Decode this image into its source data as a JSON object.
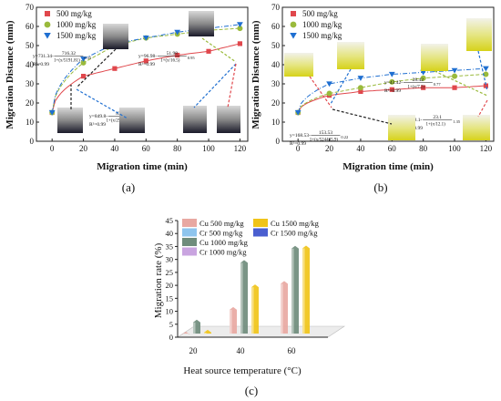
{
  "chart_data": [
    {
      "type": "scatter",
      "panel_label": "(a)",
      "xlabel": "Migration time (min)",
      "ylabel": "Migration Distance (mm)",
      "xlim": [
        -10,
        125
      ],
      "ylim": [
        0,
        70
      ],
      "x_ticks": [
        0,
        20,
        40,
        60,
        80,
        100,
        120
      ],
      "y_ticks": [
        0,
        10,
        20,
        30,
        40,
        50,
        60,
        70
      ],
      "grid": false,
      "legend": "top-left",
      "series": [
        {
          "name": "500 mg/kg",
          "color": "#e0474c",
          "marker": "square",
          "x": [
            0,
            20,
            40,
            60,
            80,
            100,
            120
          ],
          "y": [
            15,
            34,
            38,
            42,
            45,
            47,
            51
          ]
        },
        {
          "name": "1000 mg/kg",
          "color": "#9aba3c",
          "marker": "circle",
          "x": [
            0,
            20,
            40,
            60,
            80,
            100,
            120
          ],
          "y": [
            15,
            41,
            50,
            54,
            56,
            58,
            59
          ]
        },
        {
          "name": "1500 mg/kg",
          "color": "#1f6fd1",
          "marker": "triangle-down",
          "x": [
            0,
            20,
            40,
            60,
            80,
            100,
            120
          ],
          "y": [
            15,
            43,
            51,
            54,
            57,
            59,
            61
          ]
        }
      ],
      "equations": [
        {
          "main": "y=731.34-",
          "num": "716.32",
          "den": "1+(x/5191.81)",
          "exp": "0.35",
          "r2": "R²=0.99"
        },
        {
          "main": "y=96.98-",
          "num": "51.98",
          "den": "1+(x/16.5)",
          "exp": "0.95",
          "r2": "R²=0.99"
        },
        {
          "main": "y=849.8-",
          "num": "834.76",
          "den": "1+(x/25170553)",
          "exp": "0.3",
          "r2": "R²=0.99"
        }
      ]
    },
    {
      "type": "scatter",
      "panel_label": "(b)",
      "xlabel": "Migration time (min)",
      "ylabel": "Migration Distance (mm)",
      "xlim": [
        -10,
        125
      ],
      "ylim": [
        0,
        70
      ],
      "x_ticks": [
        0,
        20,
        40,
        60,
        80,
        100,
        120
      ],
      "y_ticks": [
        0,
        10,
        20,
        30,
        40,
        50,
        60,
        70
      ],
      "grid": false,
      "legend": "top-left",
      "series": [
        {
          "name": "500 mg/kg",
          "color": "#e0474c",
          "marker": "square",
          "x": [
            0,
            20,
            40,
            60,
            80,
            100,
            120
          ],
          "y": [
            15,
            24,
            26,
            27,
            28,
            28,
            29
          ]
        },
        {
          "name": "1000 mg/kg",
          "color": "#9aba3c",
          "marker": "circle",
          "x": [
            0,
            20,
            40,
            60,
            80,
            100,
            120
          ],
          "y": [
            15,
            25,
            28,
            31,
            33,
            34,
            35
          ]
        },
        {
          "name": "1500 mg/kg",
          "color": "#1f6fd1",
          "marker": "triangle-down",
          "x": [
            0,
            20,
            40,
            60,
            80,
            100,
            120
          ],
          "y": [
            15,
            30,
            33,
            35,
            36,
            37,
            38
          ]
        }
      ],
      "equations": [
        {
          "main": "y=43.42-",
          "num": "28.42",
          "den": "1+(x/7.2)",
          "exp": "0.77",
          "r2": "R²=0.99"
        },
        {
          "main": "y=168.53-",
          "num": "153.53",
          "den": "1+(x/524435.9)",
          "exp": "0.22",
          "r2": "R²=0.99"
        },
        {
          "main": "y=38.1-",
          "num": "23.1",
          "den": "1+(x/12.1)",
          "exp": "1.35",
          "r2": "R²=0.99"
        }
      ]
    },
    {
      "type": "bar",
      "panel_label": "(c)",
      "xlabel": "Heat source temperature (°C)",
      "ylabel": "Migration rate (%)",
      "categories": [
        "20",
        "40",
        "60"
      ],
      "ylim": [
        0,
        45
      ],
      "y_ticks": [
        0,
        5,
        10,
        15,
        20,
        25,
        30,
        35,
        40,
        45
      ],
      "grid": false,
      "legend": "top-left",
      "series": [
        {
          "name": "Cu 500 mg/kg",
          "color": "#e8a8a2",
          "values": [
            2.5,
            12,
            22
          ]
        },
        {
          "name": "Cr 500 mg/kg",
          "color": "#8ec5ee",
          "values": [
            0,
            0,
            0
          ]
        },
        {
          "name": "Cu 1000 mg/kg",
          "color": "#6f8c7c",
          "values": [
            5,
            28,
            33.5
          ]
        },
        {
          "name": "Cr 1000 mg/kg",
          "color": "#c9a4e0",
          "values": [
            0,
            0,
            0
          ]
        },
        {
          "name": "Cu 1500 mg/kg",
          "color": "#f0c419",
          "values": [
            2.5,
            20,
            35
          ]
        },
        {
          "name": "Cr 1500 mg/kg",
          "color": "#4a5fd0",
          "values": [
            0,
            0,
            0
          ]
        }
      ]
    }
  ]
}
